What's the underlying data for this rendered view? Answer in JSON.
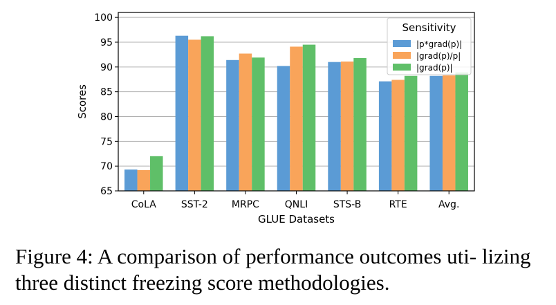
{
  "chart_data": {
    "type": "bar",
    "title": "",
    "xlabel": "GLUE Datasets",
    "ylabel": "Scores",
    "ylim": [
      65,
      101
    ],
    "yticks": [
      65,
      70,
      75,
      80,
      85,
      90,
      95,
      100
    ],
    "categories": [
      "CoLA",
      "SST-2",
      "MRPC",
      "QNLI",
      "STS-B",
      "RTE",
      "Avg."
    ],
    "grid": "horizontal",
    "legend": {
      "title": "Sensitivity",
      "placement": "top-right"
    },
    "series": [
      {
        "name": "|p*grad(p)|",
        "color": "#5b9bd5",
        "values": [
          69.3,
          96.3,
          91.4,
          90.2,
          91.0,
          87.1,
          88.2
        ]
      },
      {
        "name": "|grad(p)/p|",
        "color": "#f9a45a",
        "values": [
          69.2,
          95.5,
          92.7,
          94.1,
          91.1,
          87.4,
          88.3
        ]
      },
      {
        "name": "|grad(p)|",
        "color": "#5fbf68",
        "values": [
          72.0,
          96.2,
          91.9,
          94.5,
          91.8,
          88.2,
          88.9
        ]
      }
    ]
  },
  "caption": {
    "text": "Figure 4: A comparison of performance outcomes uti- lizing three distinct freezing score methodologies."
  }
}
